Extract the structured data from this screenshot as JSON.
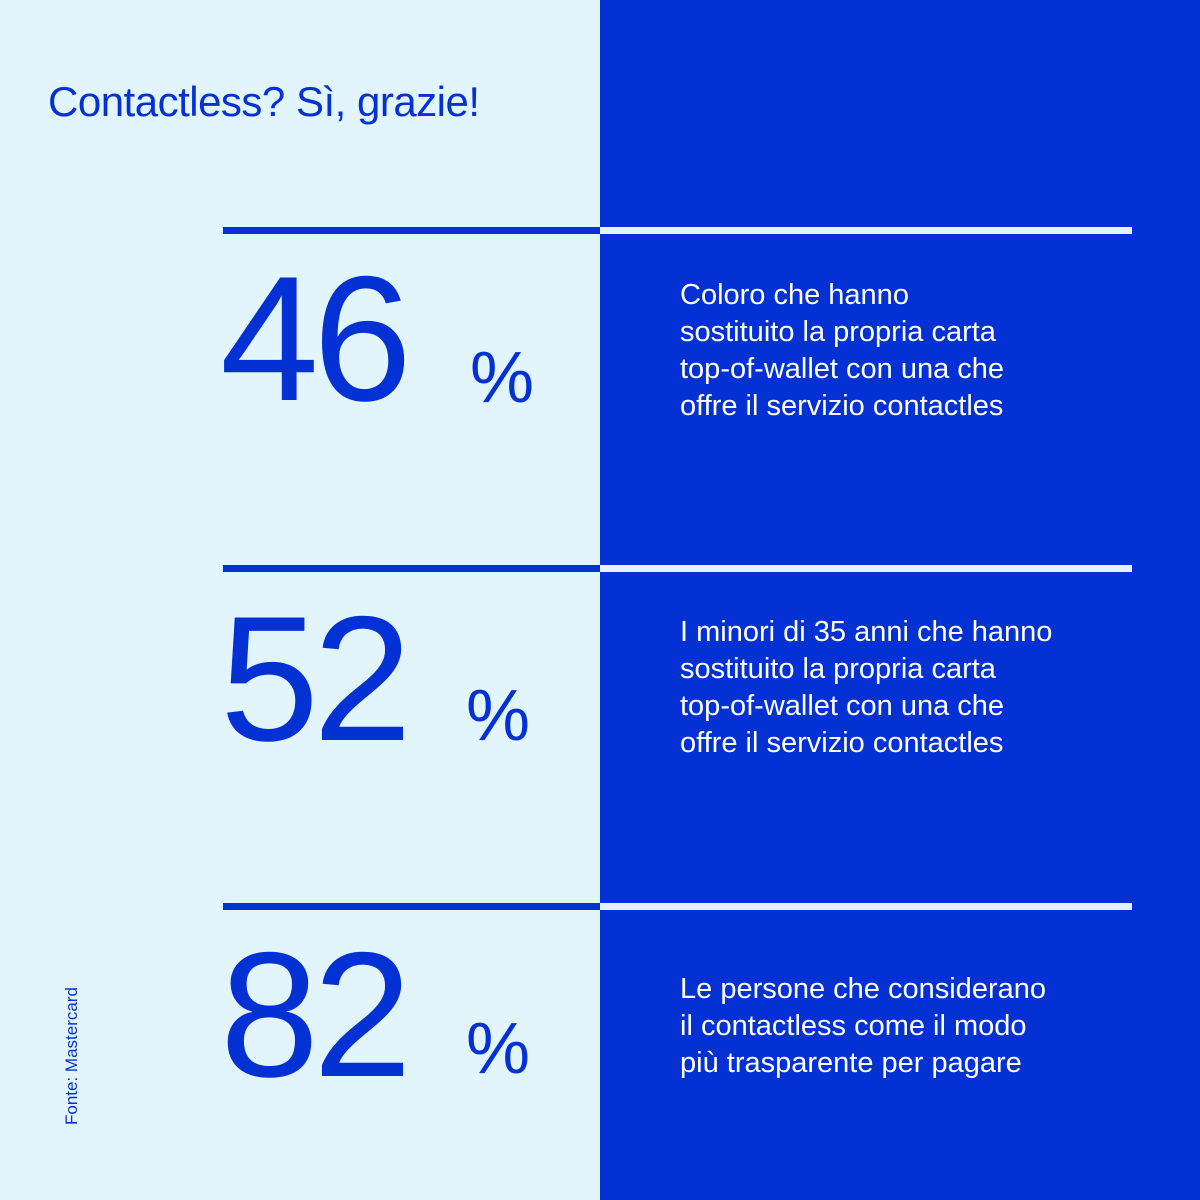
{
  "colors": {
    "left_bg": "#E3F5FC",
    "right_bg": "#0331D4",
    "accent_blue": "#0331D4",
    "rule_right": "#E3F5FC",
    "text_on_dark": "#FFFFFF"
  },
  "title": "Contactless? Sì, grazie!",
  "stats": [
    {
      "number": "46",
      "unit": "%",
      "description": "Coloro che hanno\nsostituito la propria carta\ntop-of-wallet con una che\noffre il servizio contactles"
    },
    {
      "number": "52",
      "unit": "%",
      "description": "I minori di 35 anni che hanno\nsostituito la propria carta\ntop-of-wallet con una che\noffre il servizio contactles"
    },
    {
      "number": "82",
      "unit": "%",
      "description": "Le persone che considerano\nil contactless come il modo\npiù trasparente per pagare"
    }
  ],
  "source": "Fonte: Mastercard"
}
